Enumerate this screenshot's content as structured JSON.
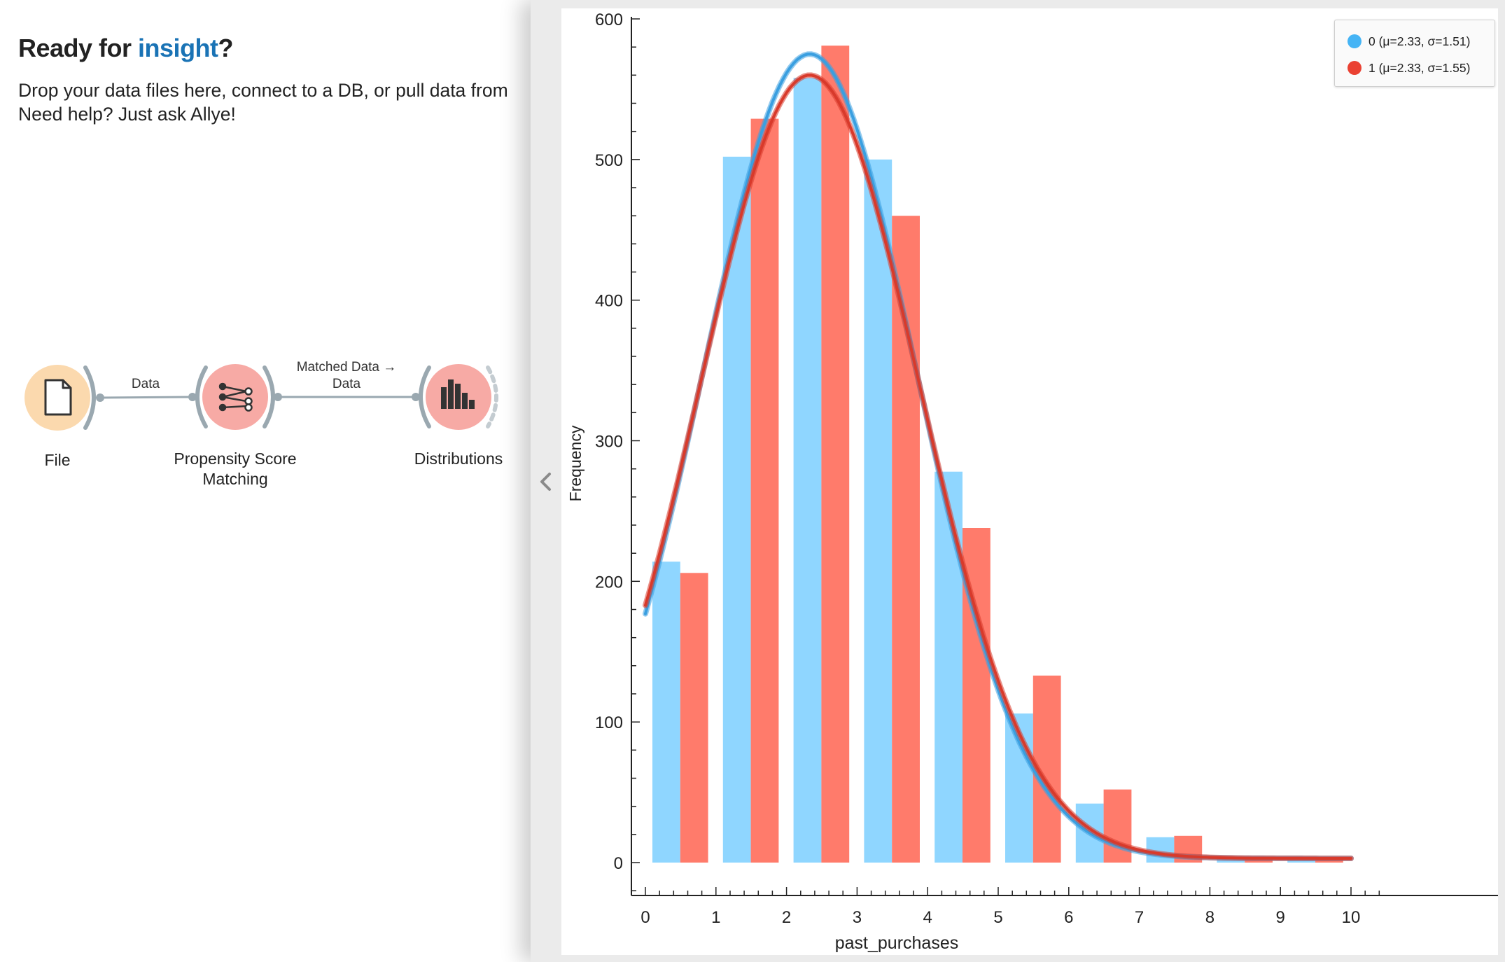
{
  "welcome": {
    "title_prefix": "Ready for ",
    "title_accent": "insight",
    "title_suffix": "?",
    "line1": "Drop your data files here, connect to a DB, or pull data from",
    "line2": "Need help? Just ask Allye!"
  },
  "workflow": {
    "nodes": [
      {
        "label": "File",
        "icon": "file-icon",
        "color": "#fbd9ae"
      },
      {
        "label1": "Propensity Score",
        "label2": "Matching",
        "icon": "propensity-matching-icon",
        "color": "#f7aaa5"
      },
      {
        "label": "Distributions",
        "icon": "histogram-icon",
        "color": "#f7aaa5"
      }
    ],
    "links": [
      {
        "label": "Data"
      },
      {
        "label1": "Matched Data →",
        "label2": "Data"
      }
    ]
  },
  "chart_data": {
    "type": "bar",
    "xlabel": "past_purchases",
    "ylabel": "Frequency",
    "xlim": [
      -0.4,
      10.4
    ],
    "ylim": [
      -20,
      600
    ],
    "x_ticks": [
      0,
      1,
      2,
      3,
      4,
      5,
      6,
      7,
      8,
      9,
      10
    ],
    "y_ticks": [
      0,
      100,
      200,
      300,
      400,
      500,
      600
    ],
    "categories": [
      0,
      1,
      2,
      3,
      4,
      5,
      6,
      7,
      8,
      9
    ],
    "series": [
      {
        "name": "0 (μ=2.33, σ=1.51)",
        "color": "#8fd6ff",
        "curve_color": "#3a9fe0",
        "values": [
          214,
          502,
          558,
          500,
          278,
          106,
          42,
          18,
          3,
          2
        ],
        "fit": {
          "mu": 2.33,
          "sigma": 1.51,
          "peak": 575,
          "baseline": 3
        }
      },
      {
        "name": "1 (μ=2.33, σ=1.55)",
        "color": "#ff7b6b",
        "curve_color": "#d83a2b",
        "values": [
          206,
          529,
          581,
          460,
          238,
          133,
          52,
          19,
          3,
          2
        ],
        "fit": {
          "mu": 2.33,
          "sigma": 1.55,
          "peak": 560,
          "baseline": 3
        }
      }
    ],
    "grid": false,
    "legend_position": "top-right"
  },
  "legend_colors": {
    "series0": "#45b4f5",
    "series1": "#ea4132"
  }
}
